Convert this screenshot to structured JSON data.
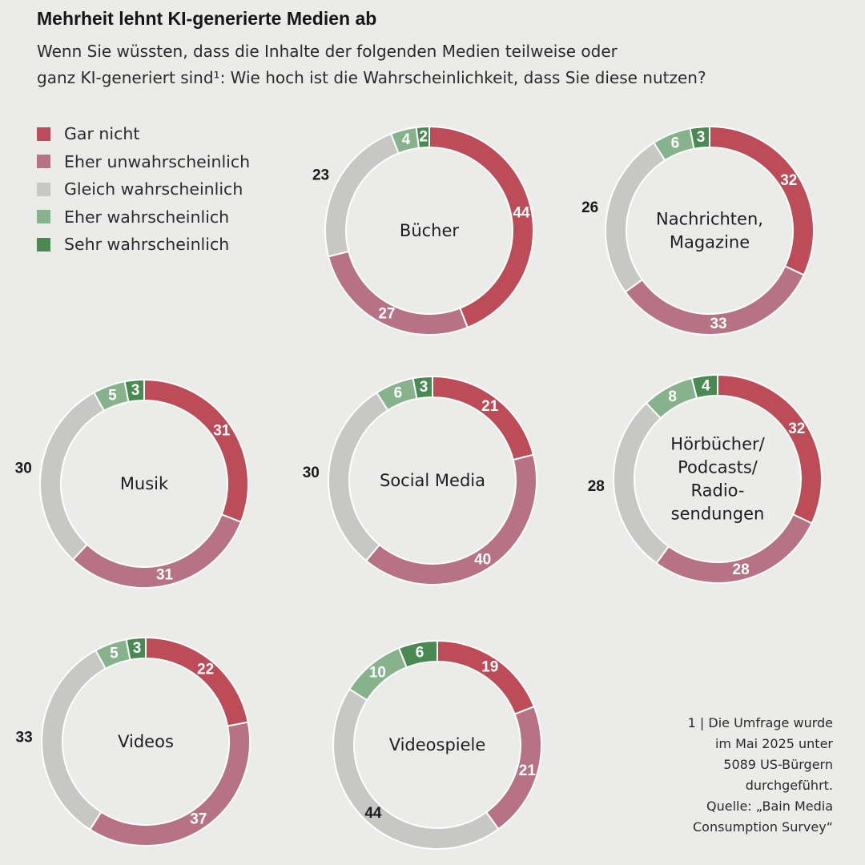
{
  "title": "Mehrheit lehnt KI-generierte Medien ab",
  "subtitle_lines": [
    "Wenn Sie wüssten, dass die Inhalte der folgenden Medien teilweise oder",
    "ganz KI-generiert sind¹: Wie hoch ist die Wahrscheinlichkeit, dass Sie diese nutzen?"
  ],
  "colors": {
    "background": "#ebebea",
    "gar_nicht": "#be4b58",
    "eher_unwahrscheinlich": "#b77285",
    "gleich_wahrscheinlich": "#c7c7c5",
    "eher_wahrscheinlich": "#86b38b",
    "sehr_wahrscheinlich": "#4a8a52"
  },
  "footnote_lines": [
    "1 | Die Umfrage wurde",
    "im Mai 2025 unter",
    "5089 US-Bürgern",
    "durchgeführt.",
    "Quelle: „Bain Media",
    "Consumption Survey“"
  ],
  "chart_data": {
    "type": "donut",
    "unit": "%",
    "legend_placement": "top-left",
    "legend": [
      "Gar nicht",
      "Eher unwahrscheinlich",
      "Gleich wahrscheinlich",
      "Eher wahrscheinlich",
      "Sehr wahrscheinlich"
    ],
    "charts": [
      {
        "label_lines": [
          "Bücher"
        ],
        "values": [
          44,
          27,
          23,
          4,
          2
        ]
      },
      {
        "label_lines": [
          "Nachrichten,",
          "Magazine"
        ],
        "values": [
          32,
          33,
          26,
          6,
          3
        ]
      },
      {
        "label_lines": [
          "Musik"
        ],
        "values": [
          31,
          31,
          30,
          5,
          3
        ]
      },
      {
        "label_lines": [
          "Social Media"
        ],
        "values": [
          21,
          40,
          30,
          6,
          3
        ]
      },
      {
        "label_lines": [
          "Hörbücher/",
          "Podcasts/",
          "Radio-",
          "sendungen"
        ],
        "values": [
          32,
          28,
          28,
          8,
          4
        ]
      },
      {
        "label_lines": [
          "Videos"
        ],
        "values": [
          22,
          37,
          33,
          5,
          3
        ]
      },
      {
        "label_lines": [
          "Videospiele"
        ],
        "values": [
          19,
          21,
          44,
          10,
          6
        ]
      }
    ]
  }
}
